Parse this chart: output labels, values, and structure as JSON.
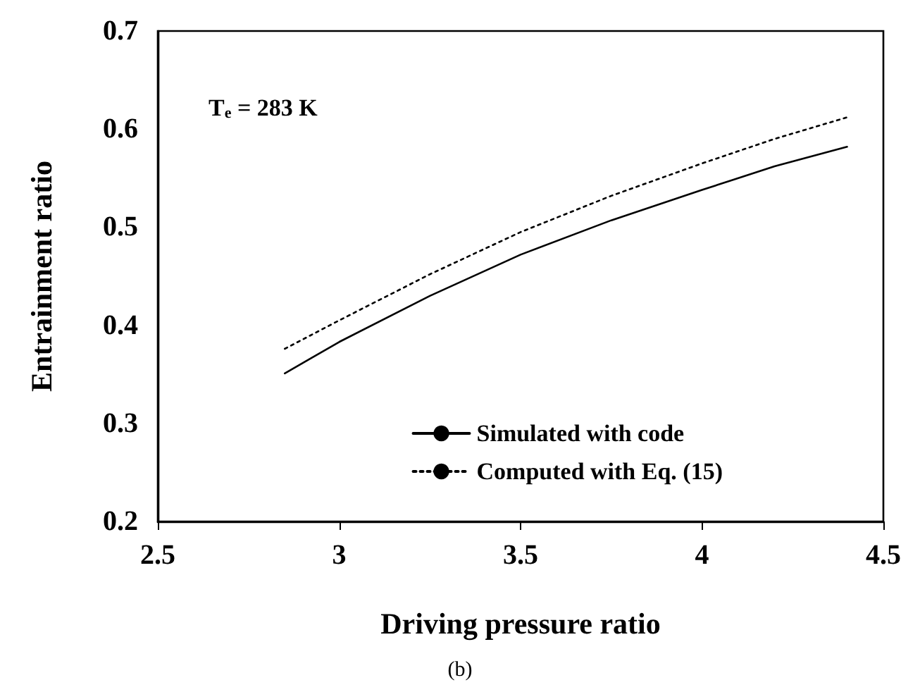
{
  "chart_data": {
    "type": "line",
    "xlabel": "Driving pressure ratio",
    "ylabel": "Entrainment ratio",
    "annotations": [
      "T$_{e}$ = 283 K",
      "(b)"
    ],
    "series": [
      {
        "name": "Simulated with code",
        "color": "#000000",
        "line_style": "solid",
        "x": [
          2.85,
          3.0,
          3.25,
          3.5,
          3.75,
          4.0,
          4.2,
          4.4
        ],
        "values": [
          0.351,
          0.383,
          0.43,
          0.472,
          0.507,
          0.538,
          0.562,
          0.582
        ]
      },
      {
        "name": "Computed with Eq. (15)",
        "color": "#000000",
        "line_style": "dotted",
        "x": [
          2.85,
          3.0,
          3.25,
          3.5,
          3.75,
          4.0,
          4.2,
          4.4
        ],
        "values": [
          0.376,
          0.405,
          0.452,
          0.495,
          0.532,
          0.565,
          0.59,
          0.612
        ]
      }
    ],
    "xlim": [
      2.5,
      4.5
    ],
    "xticks": [
      2.5,
      3,
      3.5,
      4,
      4.5
    ],
    "ylim": [
      0.2,
      0.7
    ],
    "yticks": [
      0.2,
      0.3,
      0.4,
      0.5,
      0.6,
      0.7
    ],
    "grid": false,
    "legend": "bottom right",
    "marker": "none"
  }
}
